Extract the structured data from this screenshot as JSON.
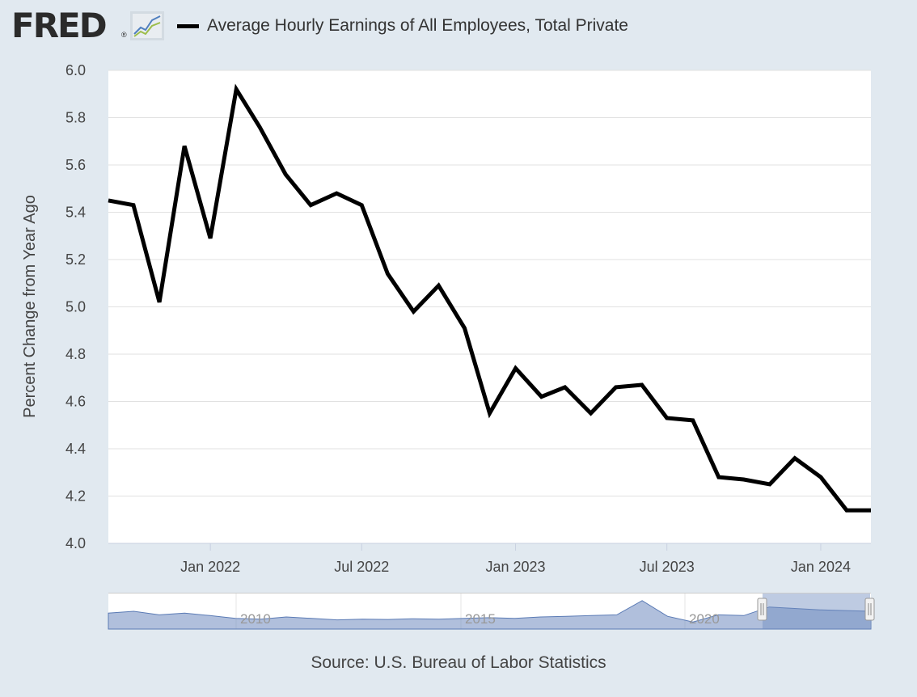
{
  "header": {
    "logo_text": "FRED",
    "logo_mark": "®",
    "logo_icon": "line-chart-icon",
    "legend_label": "Average Hourly Earnings of All Employees, Total Private",
    "legend_color": "#000000"
  },
  "chart_data": {
    "type": "line",
    "title": "",
    "ylabel": "Percent Change from Year Ago",
    "xlabel": "",
    "ylim": [
      4.0,
      6.0
    ],
    "y_ticks": [
      "4.0",
      "4.2",
      "4.4",
      "4.6",
      "4.8",
      "5.0",
      "5.2",
      "5.4",
      "5.6",
      "5.8",
      "6.0"
    ],
    "x_range": [
      "2021-09-01",
      "2024-03-01"
    ],
    "x_ticks": [
      {
        "date": "2022-01-01",
        "label": "Jan 2022"
      },
      {
        "date": "2022-07-01",
        "label": "Jul 2022"
      },
      {
        "date": "2023-01-01",
        "label": "Jan 2023"
      },
      {
        "date": "2023-07-01",
        "label": "Jul 2023"
      },
      {
        "date": "2024-01-01",
        "label": "Jan 2024"
      }
    ],
    "grid": true,
    "series": [
      {
        "name": "Average Hourly Earnings of All Employees, Total Private",
        "color": "#000000",
        "x": [
          "2021-09-01",
          "2021-10-01",
          "2021-11-01",
          "2021-12-01",
          "2022-01-01",
          "2022-02-01",
          "2022-03-01",
          "2022-04-01",
          "2022-05-01",
          "2022-06-01",
          "2022-07-01",
          "2022-08-01",
          "2022-09-01",
          "2022-10-01",
          "2022-11-01",
          "2022-12-01",
          "2023-01-01",
          "2023-02-01",
          "2023-03-01",
          "2023-04-01",
          "2023-05-01",
          "2023-06-01",
          "2023-07-01",
          "2023-08-01",
          "2023-09-01",
          "2023-10-01",
          "2023-11-01",
          "2023-12-01",
          "2024-01-01",
          "2024-02-01",
          "2024-03-01"
        ],
        "y": [
          5.45,
          5.43,
          5.02,
          5.68,
          5.29,
          5.92,
          5.76,
          5.56,
          5.43,
          5.48,
          5.43,
          5.14,
          4.98,
          5.09,
          4.91,
          4.55,
          4.74,
          4.62,
          4.66,
          4.55,
          4.66,
          4.67,
          4.53,
          4.52,
          4.28,
          4.27,
          4.25,
          4.36,
          4.28,
          4.14,
          4.14
        ]
      }
    ]
  },
  "navigator": {
    "year_labels": [
      "2010",
      "2015",
      "2020"
    ],
    "selected_range": [
      "2021-09-01",
      "2024-03-01"
    ],
    "fill_color": "#6f8bbf",
    "handle_icon": "drag-handle-icon"
  },
  "footer": {
    "source": "Source: U.S. Bureau of Labor Statistics"
  }
}
